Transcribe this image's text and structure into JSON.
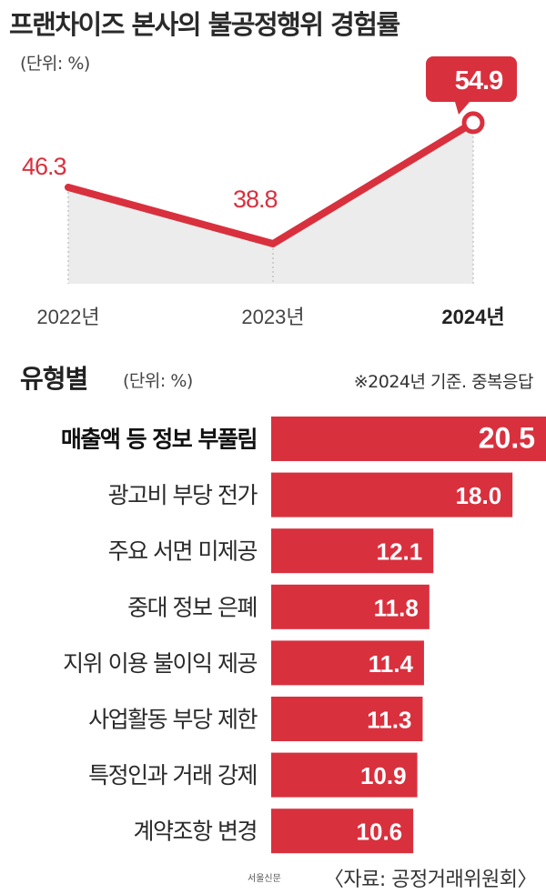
{
  "header": {
    "title": "프랜차이즈 본사의 불공정행위 경험률",
    "unit": "(단위: %)"
  },
  "section2": {
    "title": "유형별",
    "unit": "(단위: %)",
    "note": "※2024년 기준. 중복응답"
  },
  "footer": {
    "credit": "서울신문",
    "source": "〈자료: 공정거래위원회〉"
  },
  "colors": {
    "accent": "#d9303e",
    "area": "#ececec",
    "text": "#2a2a2a"
  },
  "chart_data": [
    {
      "type": "line",
      "title": "프랜차이즈 본사의 불공정행위 경험률",
      "unit": "(단위: %)",
      "categories": [
        "2022년",
        "2023년",
        "2024년"
      ],
      "values": [
        46.3,
        38.8,
        54.9
      ],
      "value_labels": [
        "46.3",
        "38.8",
        "54.9"
      ],
      "highlight_index": 2,
      "ylim": [
        30,
        60
      ],
      "grid": false
    },
    {
      "type": "bar",
      "orientation": "horizontal",
      "title": "유형별",
      "unit": "(단위: %)",
      "categories": [
        "매출액 등 정보 부풀림",
        "광고비 부당 전가",
        "주요 서면 미제공",
        "중대 정보 은폐",
        "지위 이용 불이익 제공",
        "사업활동 부당 제한",
        "특정인과 거래 강제",
        "계약조항 변경"
      ],
      "values": [
        20.5,
        18.0,
        12.1,
        11.8,
        11.4,
        11.3,
        10.9,
        10.6
      ],
      "value_labels": [
        "20.5",
        "18.0",
        "12.1",
        "11.8",
        "11.4",
        "11.3",
        "10.9",
        "10.6"
      ],
      "highlight_index": 0
    }
  ]
}
